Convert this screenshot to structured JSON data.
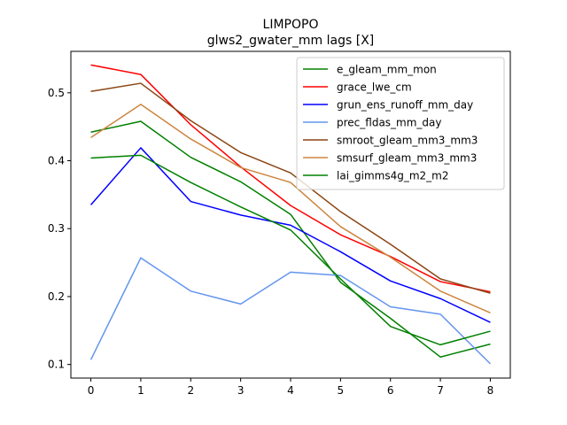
{
  "chart_data": {
    "type": "line",
    "title": "LIMPOPO",
    "subtitle": "glws2_gwater_mm lags [X]",
    "xlabel": "",
    "ylabel": "",
    "x": [
      0,
      1,
      2,
      3,
      4,
      5,
      6,
      7,
      8
    ],
    "xlim": [
      -0.4,
      8.4
    ],
    "ylim": [
      0.08,
      0.561
    ],
    "xticks": [
      "0",
      "1",
      "2",
      "3",
      "4",
      "5",
      "6",
      "7",
      "8"
    ],
    "yticks": [
      "0.1",
      "0.2",
      "0.3",
      "0.4",
      "0.5"
    ],
    "legend_position": "top-right",
    "series": [
      {
        "name": "e_gleam_mm_mon",
        "color": "#008000",
        "values": [
          0.442,
          0.458,
          0.405,
          0.369,
          0.321,
          0.221,
          0.168,
          0.111,
          0.13
        ]
      },
      {
        "name": "grace_lwe_cm",
        "color": "#ff0000",
        "values": [
          0.541,
          0.527,
          0.453,
          0.391,
          0.334,
          0.291,
          0.259,
          0.222,
          0.207
        ]
      },
      {
        "name": "grun_ens_runoff_mm_day",
        "color": "#0000ff",
        "values": [
          0.335,
          0.419,
          0.34,
          0.32,
          0.305,
          0.266,
          0.223,
          0.197,
          0.162
        ]
      },
      {
        "name": "prec_fldas_mm_day",
        "color": "#6495ed",
        "values": [
          0.107,
          0.257,
          0.208,
          0.189,
          0.236,
          0.231,
          0.185,
          0.174,
          0.101
        ]
      },
      {
        "name": "smroot_gleam_mm3_mm3",
        "color": "#8b4513",
        "values": [
          0.502,
          0.514,
          0.459,
          0.412,
          0.382,
          0.325,
          0.277,
          0.226,
          0.205
        ]
      },
      {
        "name": "smsurf_gleam_mm3_mm3",
        "color": "#cd853f",
        "values": [
          0.434,
          0.483,
          0.432,
          0.39,
          0.368,
          0.303,
          0.258,
          0.208,
          0.176
        ]
      },
      {
        "name": "lai_gimms4g_m2_m2",
        "color": "#008000",
        "values": [
          0.404,
          0.408,
          0.368,
          0.332,
          0.298,
          0.226,
          0.156,
          0.129,
          0.149
        ]
      }
    ]
  }
}
